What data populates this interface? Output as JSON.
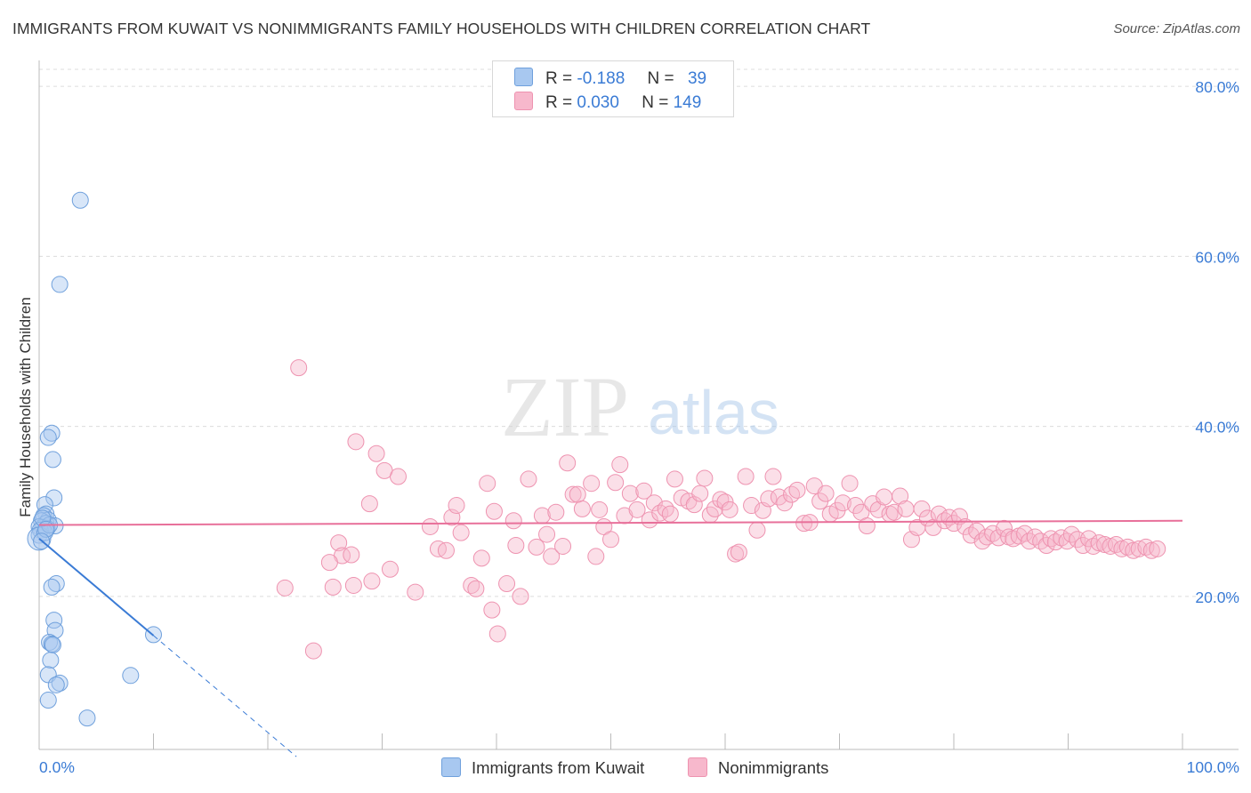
{
  "title": "IMMIGRANTS FROM KUWAIT VS NONIMMIGRANTS FAMILY HOUSEHOLDS WITH CHILDREN CORRELATION CHART",
  "source": "Source: ZipAtlas.com",
  "watermark": {
    "zip": "ZIP",
    "atlas": "atlas"
  },
  "legend_stats": [
    {
      "r_label": "R =",
      "r_value": "-0.188",
      "n_label": "N =",
      "n_value": "39",
      "color": "#a8c8f0"
    },
    {
      "r_label": "R =",
      "r_value": "0.030",
      "n_label": "N =",
      "n_value": "149",
      "color": "#f7b8cc"
    }
  ],
  "chart_data": {
    "type": "scatter",
    "title": "IMMIGRANTS FROM KUWAIT VS NONIMMIGRANTS FAMILY HOUSEHOLDS WITH CHILDREN CORRELATION CHART",
    "xlabel": "",
    "ylabel": "Family Households with Children",
    "xlim": [
      0,
      100
    ],
    "ylim": [
      2,
      82
    ],
    "x_tick_labels": [
      "0.0%",
      "100.0%"
    ],
    "y_ticks": [
      20,
      40,
      60,
      80
    ],
    "y_tick_labels": [
      "20.0%",
      "40.0%",
      "60.0%",
      "80.0%"
    ],
    "grid": true,
    "legend_position": "bottom-center",
    "series": [
      {
        "name": "Immigrants from Kuwait",
        "color": "#a8c8f0",
        "stroke": "#6fa0dc",
        "trend": {
          "x0": 0,
          "y0": 26.8,
          "x1": 10,
          "y1": 15.4,
          "dash_to_x": 22.5,
          "color": "#3a7bd5"
        },
        "points": [
          [
            3.6,
            66.6
          ],
          [
            1.8,
            56.7
          ],
          [
            1.1,
            39.2
          ],
          [
            0.8,
            38.7
          ],
          [
            1.2,
            36.1
          ],
          [
            1.3,
            31.6
          ],
          [
            0.5,
            30.8
          ],
          [
            0.6,
            29.7
          ],
          [
            0.4,
            29.5
          ],
          [
            0.8,
            29.0
          ],
          [
            0.2,
            28.9
          ],
          [
            0.6,
            28.6
          ],
          [
            1.4,
            28.3
          ],
          [
            0.3,
            28.1
          ],
          [
            0.7,
            28.0
          ],
          [
            0.0,
            28.2
          ],
          [
            0.1,
            27.8
          ],
          [
            0.0,
            27.2
          ],
          [
            0.0,
            26.8
          ],
          [
            1.5,
            21.5
          ],
          [
            1.1,
            21.1
          ],
          [
            1.3,
            17.2
          ],
          [
            1.4,
            16.0
          ],
          [
            0.9,
            14.6
          ],
          [
            1.1,
            14.4
          ],
          [
            1.2,
            14.3
          ],
          [
            1.0,
            12.5
          ],
          [
            0.8,
            10.8
          ],
          [
            1.8,
            9.8
          ],
          [
            1.5,
            9.6
          ],
          [
            0.8,
            7.8
          ],
          [
            4.2,
            5.7
          ],
          [
            8.0,
            10.7
          ],
          [
            10.0,
            15.5
          ],
          [
            0.5,
            27.5
          ],
          [
            0.9,
            28.4
          ],
          [
            0.3,
            29.2
          ],
          [
            0.6,
            27.9
          ],
          [
            0.2,
            26.5
          ]
        ]
      },
      {
        "name": "Nonimmigrants",
        "color": "#f7b8cc",
        "stroke": "#ee93b0",
        "trend": {
          "x0": 0,
          "y0": 28.4,
          "x1": 100,
          "y1": 28.9,
          "color": "#e8709a"
        },
        "points": [
          [
            22.7,
            46.9
          ],
          [
            27.7,
            38.2
          ],
          [
            29.5,
            36.8
          ],
          [
            30.2,
            34.8
          ],
          [
            31.4,
            34.1
          ],
          [
            28.9,
            30.9
          ],
          [
            26.2,
            26.3
          ],
          [
            26.5,
            24.8
          ],
          [
            27.3,
            24.9
          ],
          [
            25.4,
            24.0
          ],
          [
            21.5,
            21.0
          ],
          [
            25.7,
            21.1
          ],
          [
            27.5,
            21.3
          ],
          [
            29.1,
            21.8
          ],
          [
            30.7,
            23.2
          ],
          [
            32.9,
            20.5
          ],
          [
            24.0,
            13.6
          ],
          [
            34.2,
            28.2
          ],
          [
            34.9,
            25.6
          ],
          [
            35.6,
            25.4
          ],
          [
            36.1,
            29.3
          ],
          [
            36.5,
            30.7
          ],
          [
            36.9,
            27.5
          ],
          [
            37.8,
            21.3
          ],
          [
            38.2,
            20.9
          ],
          [
            38.7,
            24.5
          ],
          [
            39.2,
            33.3
          ],
          [
            39.6,
            18.4
          ],
          [
            39.8,
            30.0
          ],
          [
            40.1,
            15.6
          ],
          [
            40.9,
            21.5
          ],
          [
            41.5,
            28.9
          ],
          [
            41.7,
            26.0
          ],
          [
            42.1,
            20.0
          ],
          [
            42.8,
            33.8
          ],
          [
            43.5,
            25.8
          ],
          [
            44.0,
            29.5
          ],
          [
            44.4,
            27.3
          ],
          [
            44.8,
            24.7
          ],
          [
            45.2,
            29.9
          ],
          [
            45.8,
            25.9
          ],
          [
            46.2,
            35.7
          ],
          [
            46.7,
            32.0
          ],
          [
            47.1,
            32.0
          ],
          [
            47.5,
            30.3
          ],
          [
            48.3,
            33.3
          ],
          [
            48.7,
            24.7
          ],
          [
            49.0,
            30.2
          ],
          [
            49.4,
            28.2
          ],
          [
            50.0,
            26.7
          ],
          [
            50.4,
            33.4
          ],
          [
            50.8,
            35.5
          ],
          [
            51.2,
            29.5
          ],
          [
            51.7,
            32.1
          ],
          [
            52.3,
            30.2
          ],
          [
            52.9,
            32.4
          ],
          [
            53.4,
            29.0
          ],
          [
            53.8,
            31.0
          ],
          [
            54.3,
            29.8
          ],
          [
            54.8,
            30.3
          ],
          [
            55.2,
            29.7
          ],
          [
            55.6,
            33.8
          ],
          [
            56.2,
            31.6
          ],
          [
            56.8,
            31.2
          ],
          [
            57.3,
            30.8
          ],
          [
            57.8,
            32.1
          ],
          [
            58.2,
            33.9
          ],
          [
            58.7,
            29.6
          ],
          [
            59.1,
            30.3
          ],
          [
            59.6,
            31.4
          ],
          [
            60.0,
            31.1
          ],
          [
            60.4,
            30.2
          ],
          [
            60.9,
            25.0
          ],
          [
            61.2,
            25.2
          ],
          [
            61.8,
            34.1
          ],
          [
            62.3,
            30.7
          ],
          [
            62.8,
            27.8
          ],
          [
            63.3,
            30.1
          ],
          [
            63.8,
            31.5
          ],
          [
            64.2,
            34.1
          ],
          [
            64.7,
            31.7
          ],
          [
            65.2,
            31.0
          ],
          [
            65.8,
            32.0
          ],
          [
            66.3,
            32.5
          ],
          [
            66.9,
            28.6
          ],
          [
            67.4,
            28.7
          ],
          [
            67.8,
            33.0
          ],
          [
            68.3,
            31.2
          ],
          [
            68.8,
            32.1
          ],
          [
            69.2,
            29.7
          ],
          [
            69.8,
            30.1
          ],
          [
            70.3,
            31.0
          ],
          [
            70.9,
            33.3
          ],
          [
            71.4,
            30.7
          ],
          [
            71.9,
            29.9
          ],
          [
            72.4,
            28.3
          ],
          [
            72.9,
            30.9
          ],
          [
            73.4,
            30.2
          ],
          [
            73.9,
            31.7
          ],
          [
            74.4,
            29.7
          ],
          [
            74.8,
            29.9
          ],
          [
            75.3,
            31.8
          ],
          [
            75.8,
            30.3
          ],
          [
            76.3,
            26.7
          ],
          [
            76.8,
            28.1
          ],
          [
            77.2,
            30.3
          ],
          [
            77.7,
            29.2
          ],
          [
            78.2,
            28.1
          ],
          [
            78.7,
            29.7
          ],
          [
            79.2,
            28.9
          ],
          [
            79.6,
            29.3
          ],
          [
            80.0,
            28.6
          ],
          [
            80.5,
            29.4
          ],
          [
            81.0,
            28.2
          ],
          [
            81.5,
            27.2
          ],
          [
            82.0,
            27.7
          ],
          [
            82.5,
            26.5
          ],
          [
            82.9,
            27.0
          ],
          [
            83.4,
            27.4
          ],
          [
            83.9,
            26.9
          ],
          [
            84.4,
            28.0
          ],
          [
            84.8,
            27.0
          ],
          [
            85.2,
            26.8
          ],
          [
            85.7,
            27.1
          ],
          [
            86.2,
            27.4
          ],
          [
            86.6,
            26.5
          ],
          [
            87.1,
            27.0
          ],
          [
            87.6,
            26.5
          ],
          [
            88.1,
            26.0
          ],
          [
            88.5,
            26.8
          ],
          [
            88.9,
            26.4
          ],
          [
            89.4,
            26.9
          ],
          [
            89.9,
            26.5
          ],
          [
            90.3,
            27.3
          ],
          [
            90.8,
            26.7
          ],
          [
            91.3,
            26.0
          ],
          [
            91.8,
            26.8
          ],
          [
            92.2,
            25.9
          ],
          [
            92.7,
            26.3
          ],
          [
            93.2,
            26.1
          ],
          [
            93.7,
            25.9
          ],
          [
            94.2,
            26.1
          ],
          [
            94.7,
            25.6
          ],
          [
            95.2,
            25.8
          ],
          [
            95.7,
            25.4
          ],
          [
            96.2,
            25.6
          ],
          [
            96.8,
            25.8
          ],
          [
            97.3,
            25.4
          ],
          [
            97.8,
            25.6
          ]
        ]
      }
    ]
  },
  "bottom_legend": [
    {
      "label": "Immigrants from Kuwait",
      "color": "#a8c8f0",
      "stroke": "#6fa0dc"
    },
    {
      "label": "Nonimmigrants",
      "color": "#f7b8cc",
      "stroke": "#ee93b0"
    }
  ]
}
